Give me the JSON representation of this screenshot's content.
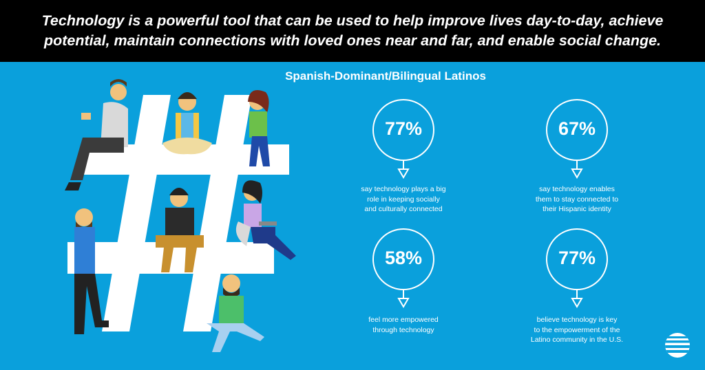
{
  "header": {
    "line1": "Technology is a powerful tool that can be used to help improve lives day-to-day, achieve",
    "line2": "potential, maintain connections with loved ones near and far, and enable social change."
  },
  "subtitle": "Spanish-Dominant/Bilingual Latinos",
  "stats": [
    {
      "value": "77%",
      "lines": [
        "say technology plays a big",
        "role in keeping socially",
        "and culturally connected"
      ]
    },
    {
      "value": "67%",
      "lines": [
        "say technology enables",
        "them to stay connected to",
        "their Hispanic identity"
      ]
    },
    {
      "value": "58%",
      "lines": [
        "feel more empowered",
        "through technology"
      ]
    },
    {
      "value": "77%",
      "lines": [
        "believe technology is key",
        "to the empowerment of the",
        "Latino community in the U.S."
      ]
    }
  ],
  "colors": {
    "background": "#0aa0dc",
    "header": "#000000",
    "text": "#ffffff"
  },
  "icons": [
    "hashtag-illustration",
    "people-with-phones",
    "att-globe-logo"
  ]
}
